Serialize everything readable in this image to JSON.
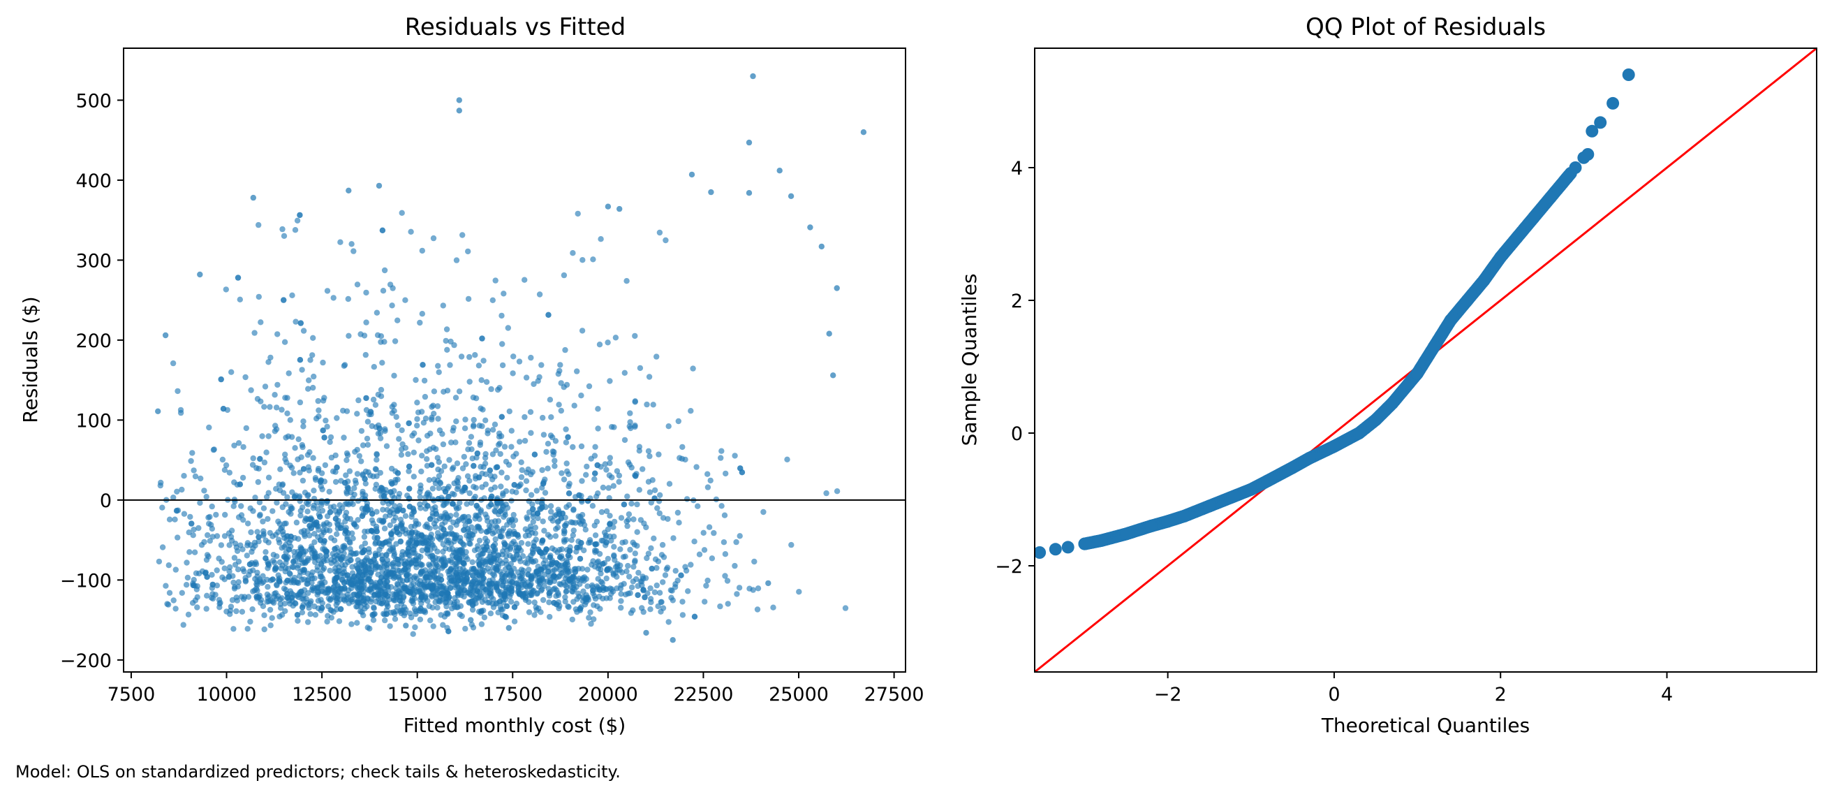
{
  "chart_data": [
    {
      "type": "scatter",
      "title": "Residuals vs Fitted",
      "xlabel": "Fitted monthly cost ($)",
      "ylabel": "Residuals ($)",
      "xlim": [
        7300,
        27800
      ],
      "ylim": [
        -215,
        565
      ],
      "xticks": [
        7500,
        10000,
        12500,
        15000,
        17500,
        20000,
        22500,
        25000,
        27500
      ],
      "yticks": [
        -200,
        -100,
        0,
        100,
        200,
        300,
        400,
        500
      ],
      "grid": false,
      "hline_y": 0,
      "point_color": "#1f77b4",
      "line_color": "#000000",
      "n_points": 3500,
      "points_outliers": [
        [
          16100,
          500
        ],
        [
          16100,
          487
        ],
        [
          23800,
          530
        ],
        [
          26700,
          460
        ],
        [
          23700,
          447
        ],
        [
          24500,
          412
        ],
        [
          22200,
          407
        ],
        [
          23700,
          384
        ],
        [
          22700,
          385
        ],
        [
          24800,
          380
        ],
        [
          13200,
          387
        ],
        [
          14000,
          393
        ],
        [
          10700,
          378
        ],
        [
          20000,
          367
        ],
        [
          20300,
          364
        ],
        [
          25300,
          341
        ],
        [
          25600,
          317
        ],
        [
          25900,
          156
        ],
        [
          26000,
          265
        ],
        [
          25800,
          208
        ],
        [
          24200,
          -104
        ],
        [
          9300,
          282
        ],
        [
          8400,
          206
        ],
        [
          8200,
          111
        ],
        [
          21700,
          -175
        ],
        [
          21000,
          -166
        ],
        [
          14700,
          -157
        ],
        [
          16400,
          -150
        ],
        [
          17400,
          -160
        ]
      ]
    },
    {
      "type": "scatter",
      "title": "QQ Plot of Residuals",
      "xlabel": "Theoretical Quantiles",
      "ylabel": "Sample Quantiles",
      "xlim": [
        -3.6,
        5.8
      ],
      "ylim": [
        -3.6,
        5.8
      ],
      "xticks": [
        -2,
        0,
        2,
        4
      ],
      "yticks": [
        -2,
        0,
        2,
        4
      ],
      "grid": false,
      "reference_line": [
        [
          -3.6,
          -3.6
        ],
        [
          5.8,
          5.8
        ]
      ],
      "reference_line_color": "#ff0000",
      "point_color": "#1f77b4",
      "x": [
        -3.54,
        -3.35,
        -3.2,
        -3.0,
        -2.8,
        -2.5,
        -2.2,
        -2.0,
        -1.8,
        -1.5,
        -1.2,
        -1.0,
        -0.8,
        -0.5,
        -0.3,
        0.0,
        0.3,
        0.5,
        0.7,
        0.9,
        1.0,
        1.2,
        1.4,
        1.6,
        1.8,
        2.0,
        2.2,
        2.4,
        2.6,
        2.8,
        2.9,
        3.0,
        3.05,
        3.1,
        3.2,
        3.35,
        3.54
      ],
      "y": [
        -1.8,
        -1.75,
        -1.72,
        -1.67,
        -1.62,
        -1.52,
        -1.4,
        -1.33,
        -1.25,
        -1.1,
        -0.95,
        -0.85,
        -0.72,
        -0.52,
        -0.38,
        -0.2,
        0.0,
        0.2,
        0.45,
        0.75,
        0.9,
        1.3,
        1.7,
        2.0,
        2.3,
        2.65,
        2.95,
        3.25,
        3.55,
        3.85,
        4.0,
        4.15,
        4.2,
        4.55,
        4.68,
        4.97,
        5.4
      ]
    }
  ],
  "footer": "Model: OLS on standardized predictors; check tails & heteroskedasticity."
}
